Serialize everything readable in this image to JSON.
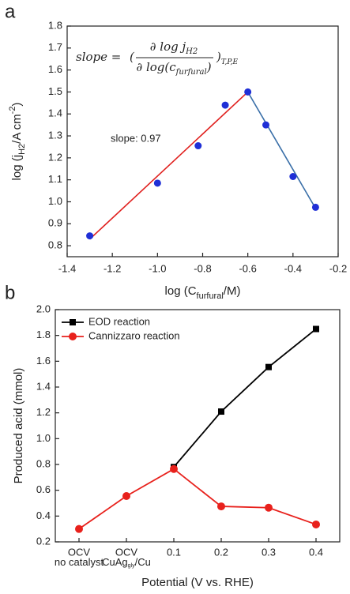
{
  "chart_data": [
    {
      "type": "scatter",
      "panel_label": "a",
      "xlabel": [
        "log (C",
        "furfural",
        "/M)"
      ],
      "ylabel": [
        "log (",
        "j",
        "H2",
        "/A cm",
        "-2",
        ")"
      ],
      "annotation": "slope: 0.97",
      "formula": {
        "lhs": "slope =",
        "open": "(",
        "numerator": "∂ log j",
        "numerator_sub": "H2",
        "denominator": "∂ log(c",
        "denominator_sub": "furfural",
        "denominator_end": ")",
        "close": ")",
        "close_sub": "T,P,E"
      },
      "x": [
        -1.3,
        -1.0,
        -0.82,
        -0.7,
        -0.6,
        -0.52,
        -0.4,
        -0.3
      ],
      "values": [
        0.845,
        1.085,
        1.255,
        1.44,
        1.5,
        1.35,
        1.115,
        0.975
      ],
      "color": "#1f2fd6",
      "fit_lines": [
        {
          "color": "#e0201e",
          "x": [
            -1.3,
            -0.6
          ],
          "y": [
            0.83,
            1.5
          ]
        },
        {
          "color": "#3a6fa8",
          "x": [
            -0.6,
            -0.3
          ],
          "y": [
            1.5,
            0.97
          ]
        }
      ],
      "xlim": [
        -1.4,
        -0.2
      ],
      "xticks": [
        -1.4,
        -1.2,
        {
          "value": -1,
          "label": "-1.0"
        },
        -0.8,
        -0.6,
        -0.4,
        -0.2
      ],
      "ylim": [
        0.75,
        1.8
      ],
      "yticks": [
        0.8,
        0.9,
        {
          "value": 1,
          "label": "1.0"
        },
        1.1,
        1.2,
        1.3,
        1.4,
        1.5,
        1.6,
        1.7,
        1.8
      ]
    },
    {
      "type": "line",
      "panel_label": "b",
      "xlabel": "Potential (V vs. RHE)",
      "ylabel": "Produced acid (mmol)",
      "categories": [
        "OCV",
        "OCV",
        "0.1",
        "0.2",
        "0.3",
        "0.4"
      ],
      "category_sublabels": [
        [
          "no catalyst"
        ],
        [
          "CuAg",
          "gly",
          "/Cu"
        ],
        null,
        null,
        null,
        null
      ],
      "series": [
        {
          "name": "EOD reaction",
          "color": "#000000",
          "marker": "square",
          "values": [
            null,
            null,
            0.78,
            1.21,
            1.555,
            1.85
          ]
        },
        {
          "name": "Cannizzaro reaction",
          "color": "#e8211c",
          "marker": "circle",
          "values": [
            0.3,
            0.555,
            0.765,
            0.475,
            0.465,
            0.335
          ]
        }
      ],
      "legend": "upper left",
      "ylim": [
        0.2,
        2
      ],
      "yticks": [
        0.2,
        0.4,
        0.6,
        0.8,
        {
          "value": 1,
          "label": "1.0"
        },
        1.2,
        1.4,
        1.6,
        1.8,
        {
          "value": 2,
          "label": "2.0"
        }
      ]
    }
  ]
}
